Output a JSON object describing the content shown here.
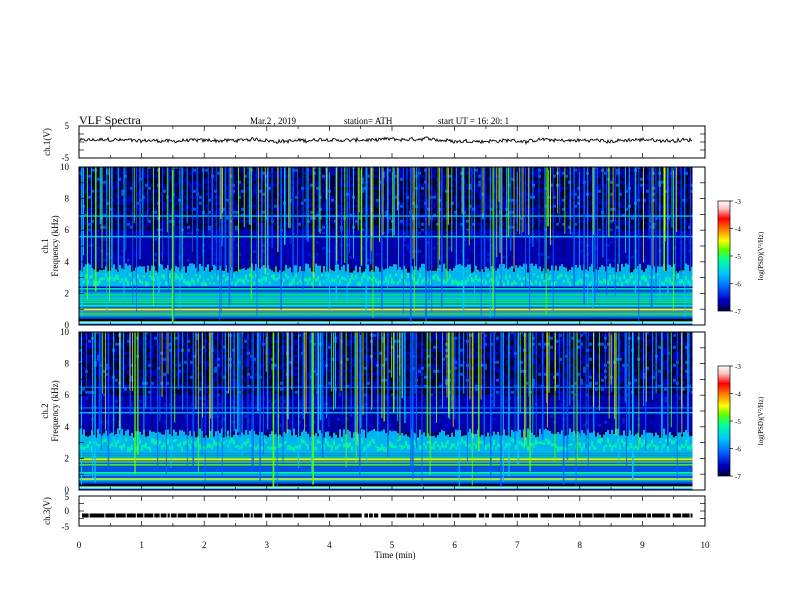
{
  "header": {
    "title": "VLF  Spectra",
    "date": "Mar.2  , 2019",
    "station": "station= ATH",
    "start": "start  UT  =    16: 20: 1"
  },
  "chart_data": [
    {
      "type": "line",
      "name": "panel-ch1-waveform",
      "ylabel": "ch.1(V)",
      "ylim": [
        -5,
        5
      ],
      "yticks": [
        "5",
        "-5"
      ],
      "xlim": [
        0,
        10
      ],
      "series": [
        {
          "color": "#000000",
          "baseline_y": 0.5,
          "amplitude": 0.5,
          "end_x": 9.8
        }
      ]
    },
    {
      "type": "heatmap",
      "name": "panel-ch1-spectrogram",
      "ylabel": "ch.1\nFrequency (kHz)",
      "ylim": [
        0,
        10
      ],
      "yticks": [
        "0",
        "2",
        "4",
        "6",
        "8",
        "10"
      ],
      "xlim": [
        0,
        10
      ],
      "end_x": 9.8,
      "colorbar": {
        "label": "log(PSD)(V²/Hz)",
        "range": [
          -7,
          -3
        ],
        "ticks": [
          "-3",
          "-4",
          "-5",
          "-6",
          "-7"
        ]
      }
    },
    {
      "type": "heatmap",
      "name": "panel-ch2-spectrogram",
      "ylabel": "ch.2\nFrequency (kHz)",
      "ylim": [
        0,
        10
      ],
      "yticks": [
        "0",
        "2",
        "4",
        "6",
        "8",
        "10"
      ],
      "xlim": [
        0,
        10
      ],
      "end_x": 9.8,
      "colorbar": {
        "label": "log(PSD)(V²/Hz)",
        "range": [
          -7,
          -3
        ],
        "ticks": [
          "-3",
          "-4",
          "-5",
          "-6",
          "-7"
        ]
      }
    },
    {
      "type": "line",
      "name": "panel-ch3-digital",
      "ylabel": "ch.3(V)",
      "ylim": [
        -5,
        5
      ],
      "yticks": [
        "5",
        "0",
        "-5"
      ],
      "xlim": [
        0,
        10
      ],
      "xlabel": "Time  (min)",
      "xticks": [
        "0",
        "1",
        "2",
        "3",
        "4",
        "5",
        "6",
        "7",
        "8",
        "9",
        "10"
      ],
      "series": [
        {
          "color": "#000000",
          "level_y": -1.5,
          "end_x": 9.8
        }
      ]
    }
  ],
  "colors": {
    "background": "#ffffff",
    "axis": "#000000",
    "colormap": [
      "#000040",
      "#0000c8",
      "#0066ff",
      "#00c8ff",
      "#00ffa0",
      "#60ff00",
      "#ffff00",
      "#ff8000",
      "#ff0000",
      "#ffc0c0",
      "#ffffff"
    ]
  }
}
